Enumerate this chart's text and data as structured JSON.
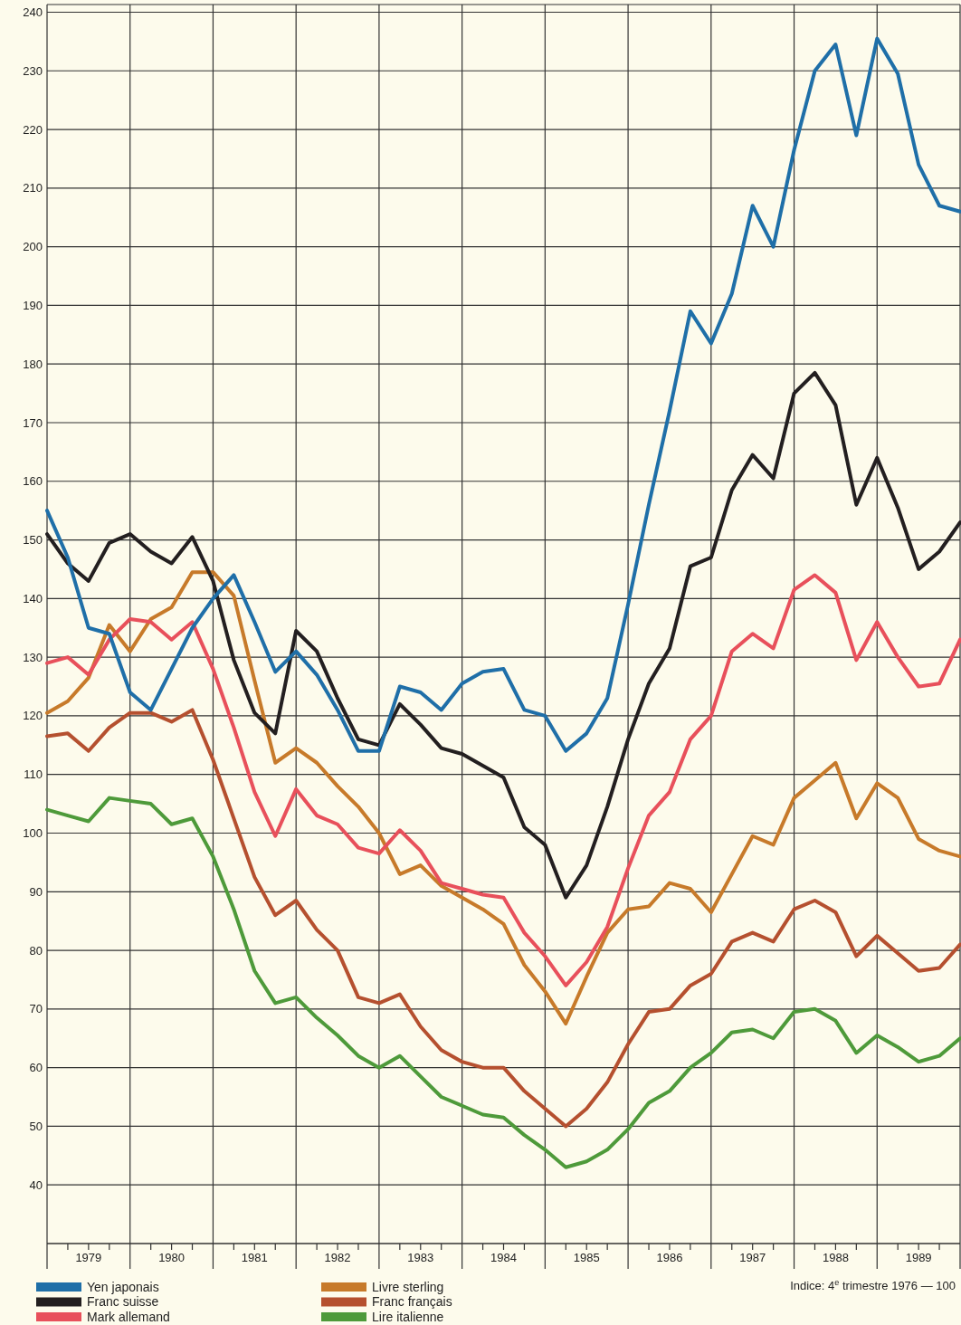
{
  "chart_data": {
    "type": "line",
    "x": [
      1979,
      1979.25,
      1979.5,
      1979.75,
      1980,
      1980.25,
      1980.5,
      1980.75,
      1981,
      1981.25,
      1981.5,
      1981.75,
      1982,
      1982.25,
      1982.5,
      1982.75,
      1983,
      1983.25,
      1983.5,
      1983.75,
      1984,
      1984.25,
      1984.5,
      1984.75,
      1985,
      1985.25,
      1985.5,
      1985.75,
      1986,
      1986.25,
      1986.5,
      1986.75,
      1987,
      1987.25,
      1987.5,
      1987.75,
      1988,
      1988.25,
      1988.5,
      1988.75,
      1989,
      1989.25,
      1989.5,
      1989.75,
      1990
    ],
    "series": [
      {
        "name": "Yen japonais",
        "color": "#1f6fa8",
        "values": [
          155,
          147,
          135,
          134,
          124,
          121,
          128,
          135,
          140,
          144,
          136,
          127.5,
          131,
          127,
          121,
          114,
          114,
          125,
          124,
          121,
          125.5,
          127.5,
          128,
          121,
          120,
          114,
          117,
          123,
          139,
          156,
          172,
          189,
          183.5,
          192,
          207,
          200,
          216.5,
          230,
          234.5,
          219,
          235.5,
          229.5,
          214,
          207,
          206
        ]
      },
      {
        "name": "Franc suisse",
        "color": "#231f20",
        "values": [
          151,
          146,
          143,
          149.5,
          151,
          148,
          146,
          150.5,
          143,
          129.5,
          120.5,
          117,
          134.5,
          131,
          123,
          116,
          115,
          122,
          118.5,
          114.5,
          113.5,
          111.5,
          109.5,
          101,
          98,
          89,
          94.5,
          104.5,
          116,
          125.5,
          131.5,
          145.5,
          147,
          158.5,
          164.5,
          160.5,
          175,
          178.5,
          173,
          156,
          164,
          155.5,
          145,
          148,
          153
        ]
      },
      {
        "name": "Mark allemand",
        "color": "#e8505b",
        "values": [
          129,
          130,
          127,
          133,
          136.5,
          136,
          133,
          136,
          128,
          118,
          107,
          99.5,
          107.5,
          103,
          101.5,
          97.5,
          96.5,
          100.5,
          97,
          91.5,
          90.5,
          89.5,
          89,
          83,
          79,
          74,
          78,
          84,
          94,
          103,
          107,
          116,
          120,
          131,
          134,
          131.5,
          141.5,
          144,
          141,
          129.5,
          136,
          130,
          125,
          125.5,
          133
        ]
      },
      {
        "name": "Livre sterling",
        "color": "#c77a2a",
        "values": [
          120.5,
          122.5,
          126.5,
          135.5,
          131,
          136.5,
          138.5,
          144.5,
          144.5,
          140.5,
          126,
          112,
          114.5,
          112,
          108,
          104.5,
          100,
          93,
          94.5,
          91,
          89,
          87,
          84.5,
          77.5,
          73,
          67.5,
          75.5,
          83,
          87,
          87.5,
          91.5,
          90.5,
          86.5,
          93,
          99.5,
          98,
          106,
          109,
          112,
          102.5,
          108.5,
          106,
          99,
          97,
          96
        ]
      },
      {
        "name": "Franc français",
        "color": "#b5502f",
        "values": [
          116.5,
          117,
          114,
          118,
          120.5,
          120.5,
          119,
          121,
          112.5,
          102.5,
          92.5,
          86,
          88.5,
          83.5,
          80,
          72,
          71,
          72.5,
          67,
          63,
          61,
          60,
          60,
          56,
          53,
          50,
          53,
          57.5,
          64,
          69.5,
          70,
          74,
          76,
          81.5,
          83,
          81.5,
          87,
          88.5,
          86.5,
          79,
          82.5,
          79.5,
          76.5,
          77,
          81
        ]
      },
      {
        "name": "Lire italienne",
        "color": "#4e9a3a",
        "values": [
          104,
          103,
          102,
          106,
          105.5,
          105,
          101.5,
          102.5,
          96,
          87,
          76.5,
          71,
          72,
          68.5,
          65.5,
          62,
          60,
          62,
          58.5,
          55,
          53.5,
          52,
          51.5,
          48.5,
          46,
          43,
          44,
          46,
          49.5,
          54,
          56,
          60,
          62.5,
          66,
          66.5,
          65,
          69.5,
          70,
          68,
          62.5,
          65.5,
          63.5,
          61,
          62,
          65
        ]
      }
    ],
    "xlim": [
      1979,
      1990
    ],
    "xticks": [
      {
        "value": 1979,
        "label": null
      },
      {
        "value": 1979.25,
        "label": null
      },
      {
        "value": 1979.5,
        "label": "1979"
      },
      {
        "value": 1979.75,
        "label": null
      },
      {
        "value": 1980,
        "label": null
      },
      {
        "value": 1980.25,
        "label": null
      },
      {
        "value": 1980.5,
        "label": "1980"
      },
      {
        "value": 1980.75,
        "label": null
      },
      {
        "value": 1981,
        "label": null
      },
      {
        "value": 1981.25,
        "label": null
      },
      {
        "value": 1981.5,
        "label": "1981"
      },
      {
        "value": 1981.75,
        "label": null
      },
      {
        "value": 1982,
        "label": null
      },
      {
        "value": 1982.25,
        "label": null
      },
      {
        "value": 1982.5,
        "label": "1982"
      },
      {
        "value": 1982.75,
        "label": null
      },
      {
        "value": 1983,
        "label": null
      },
      {
        "value": 1983.25,
        "label": null
      },
      {
        "value": 1983.5,
        "label": "1983"
      },
      {
        "value": 1983.75,
        "label": null
      },
      {
        "value": 1984,
        "label": null
      },
      {
        "value": 1984.25,
        "label": null
      },
      {
        "value": 1984.5,
        "label": "1984"
      },
      {
        "value": 1984.75,
        "label": null
      },
      {
        "value": 1985,
        "label": null
      },
      {
        "value": 1985.25,
        "label": null
      },
      {
        "value": 1985.5,
        "label": "1985"
      },
      {
        "value": 1985.75,
        "label": null
      },
      {
        "value": 1986,
        "label": null
      },
      {
        "value": 1986.25,
        "label": null
      },
      {
        "value": 1986.5,
        "label": "1986"
      },
      {
        "value": 1986.75,
        "label": null
      },
      {
        "value": 1987,
        "label": null
      },
      {
        "value": 1987.25,
        "label": null
      },
      {
        "value": 1987.5,
        "label": "1987"
      },
      {
        "value": 1987.75,
        "label": null
      },
      {
        "value": 1988,
        "label": null
      },
      {
        "value": 1988.25,
        "label": null
      },
      {
        "value": 1988.5,
        "label": "1988"
      },
      {
        "value": 1988.75,
        "label": null
      },
      {
        "value": 1989,
        "label": null
      },
      {
        "value": 1989.25,
        "label": null
      },
      {
        "value": 1989.5,
        "label": "1989"
      },
      {
        "value": 1989.75,
        "label": null
      },
      {
        "value": 1990,
        "label": null
      }
    ],
    "ylim": [
      30,
      241
    ],
    "yticks": [
      40,
      50,
      60,
      70,
      80,
      90,
      100,
      110,
      120,
      130,
      140,
      150,
      160,
      170,
      180,
      190,
      200,
      210,
      220,
      230,
      240
    ],
    "grid": true,
    "legend": "bottom",
    "line_style": "solid",
    "annotations": [
      "Indice: 4$^{e}$ trimestre 1976 — 100"
    ]
  }
}
